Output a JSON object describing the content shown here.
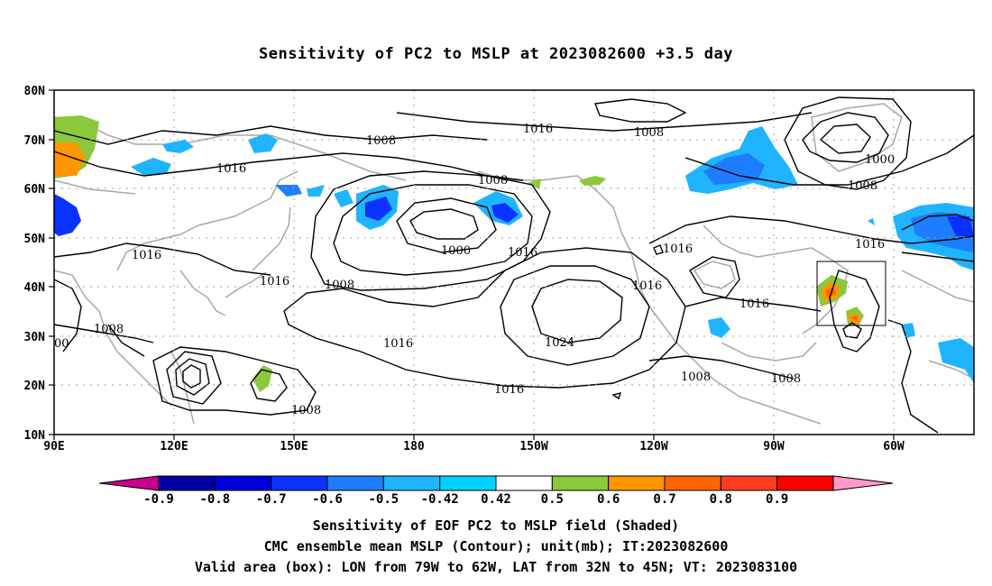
{
  "title": "Sensitivity of PC2 to MSLP at 2023082600 +3.5 day",
  "map": {
    "lon_labels": [
      "90E",
      "120E",
      "150E",
      "180",
      "150W",
      "120W",
      "90W",
      "60W"
    ],
    "lat_labels": [
      "80N",
      "70N",
      "60N",
      "50N",
      "40N",
      "30N",
      "20N",
      "10N"
    ],
    "contour_labels": [
      "1008",
      "1016",
      "1008",
      "1016",
      "1000",
      "1008",
      "1016",
      "1008",
      "1016",
      "1008",
      "1000",
      "1024",
      "1016",
      "1016",
      "1016",
      "1008",
      "1008",
      "1016",
      "1016",
      "1016",
      "1008",
      "1008",
      "00",
      "1016"
    ]
  },
  "colorbar": {
    "ticks": [
      "-0.9",
      "-0.8",
      "-0.7",
      "-0.6",
      "-0.5",
      "-0.42",
      "0.42",
      "0.5",
      "0.6",
      "0.7",
      "0.8",
      "0.9"
    ],
    "colors": [
      "#c8008c",
      "#0000a0",
      "#0000dc",
      "#0a32ff",
      "#1e7dff",
      "#1eb4ff",
      "#00d2ff",
      "#ffffff",
      "#8cc83c",
      "#ff9600",
      "#ff6400",
      "#ff3c1e",
      "#ff0000",
      "#ff9ac8"
    ]
  },
  "captions": {
    "line1": "Sensitivity of EOF PC2 to MSLP field (Shaded)",
    "line2": "CMC ensemble mean MSLP (Contour); unit(mb); IT:2023082600",
    "line3": "Valid area (box): LON from 79W to 62W, LAT from 32N to 45N; VT: 2023083100"
  }
}
